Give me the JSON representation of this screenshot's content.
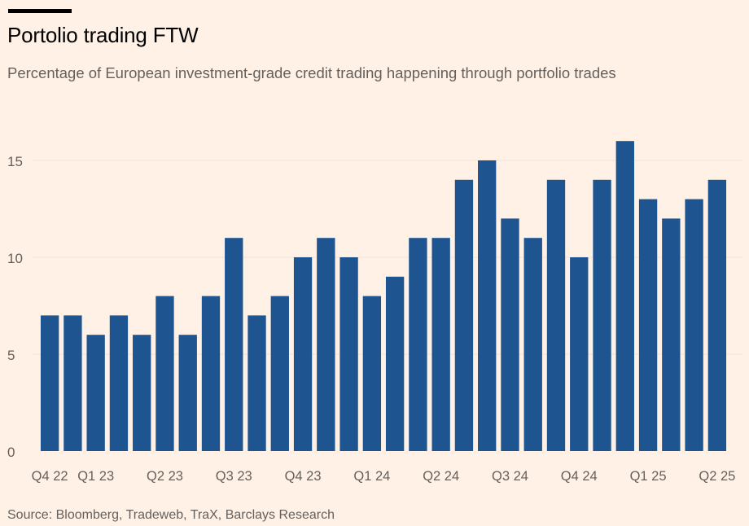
{
  "header": {
    "title": "Portolio trading FTW",
    "subtitle": "Percentage of European investment-grade credit trading happening through portfolio trades"
  },
  "footer": {
    "source": "Source: Bloomberg, Tradeweb, TraX, Barclays Research"
  },
  "colors": {
    "background": "#fff1e5",
    "bar": "#1e5591",
    "grid": "#f1e2d5",
    "axis_text": "#66605c"
  },
  "chart_data": {
    "type": "bar",
    "title": "Portolio trading FTW",
    "subtitle": "Percentage of European investment-grade credit trading happening through portfolio trades",
    "xlabel": "",
    "ylabel": "",
    "ylim": [
      0,
      17
    ],
    "yticks": [
      0,
      5,
      10,
      15
    ],
    "grid": true,
    "values": [
      7,
      7,
      6,
      7,
      6,
      8,
      6,
      8,
      11,
      7,
      8,
      10,
      11,
      10,
      8,
      9,
      11,
      11,
      14,
      15,
      12,
      11,
      14,
      10,
      14,
      16,
      13,
      12,
      13,
      14
    ],
    "x_tick_labels": [
      {
        "label": "Q4 22",
        "index": 0
      },
      {
        "label": "Q1 23",
        "index": 2
      },
      {
        "label": "Q2 23",
        "index": 5
      },
      {
        "label": "Q3 23",
        "index": 8
      },
      {
        "label": "Q4 23",
        "index": 11
      },
      {
        "label": "Q1 24",
        "index": 14
      },
      {
        "label": "Q2 24",
        "index": 17
      },
      {
        "label": "Q3 24",
        "index": 20
      },
      {
        "label": "Q4 24",
        "index": 23
      },
      {
        "label": "Q1 25",
        "index": 26
      },
      {
        "label": "Q2 25",
        "index": 29
      }
    ]
  }
}
